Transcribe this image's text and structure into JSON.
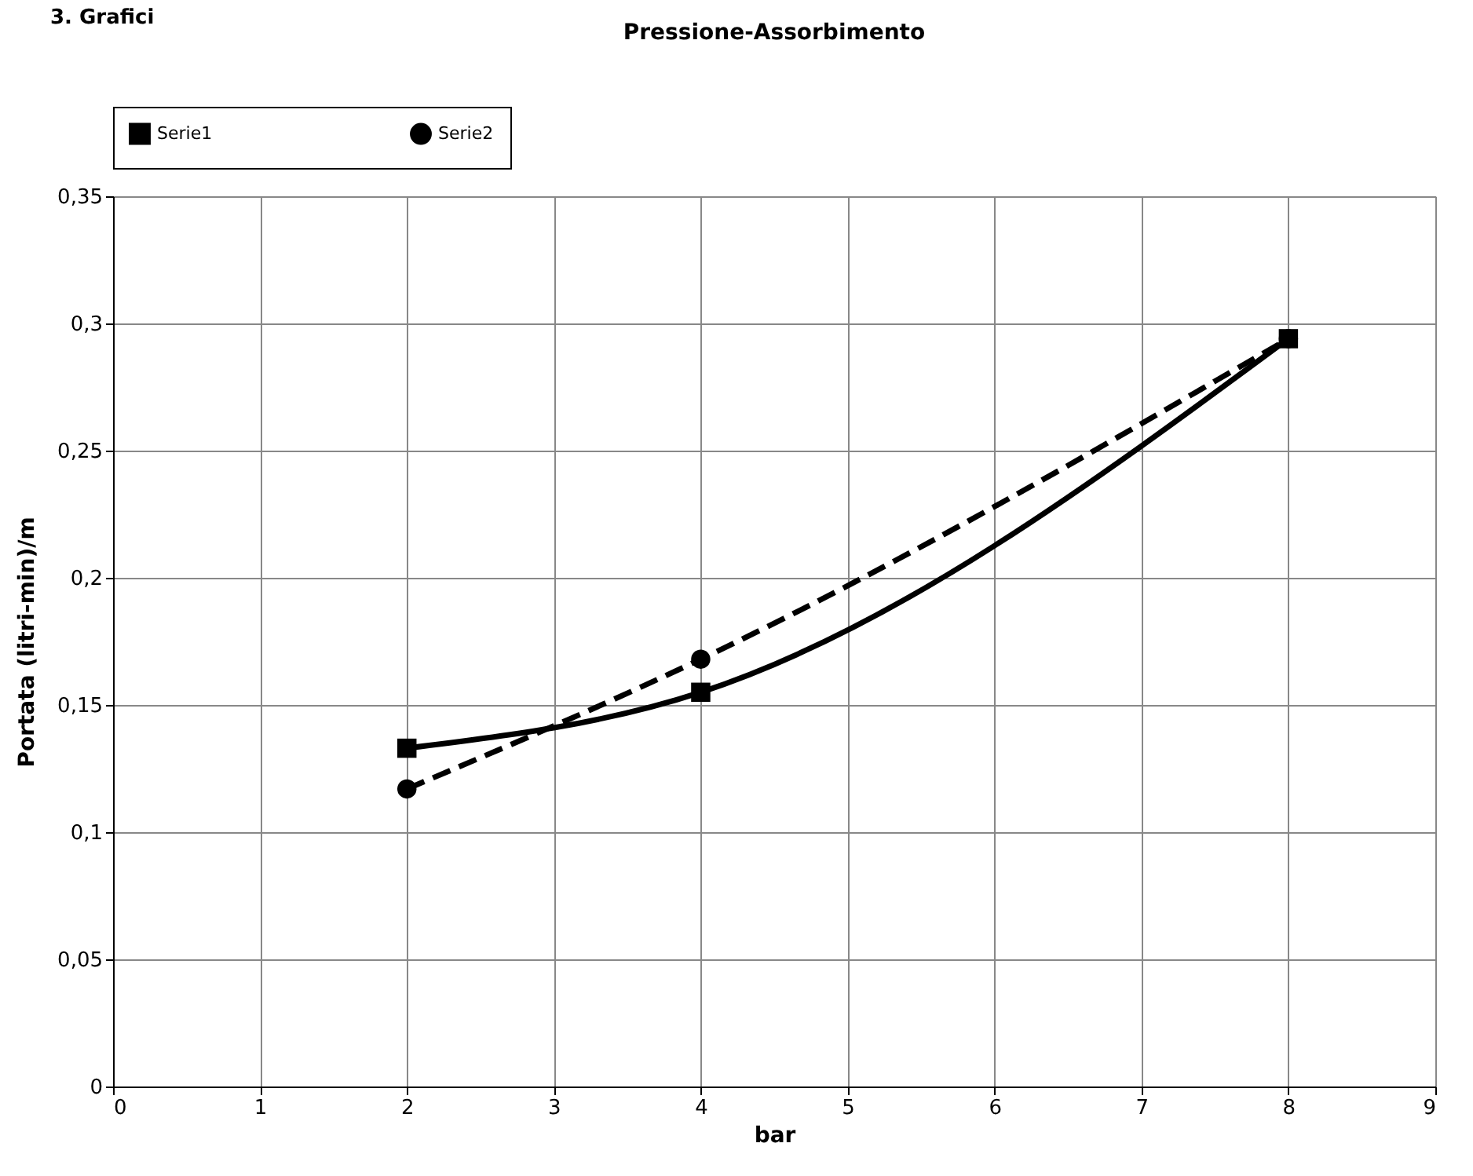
{
  "chart_data": {
    "type": "line",
    "title": "Pressione-Assorbimento",
    "xlabel": "bar",
    "ylabel": "Portata (litri-min)/m",
    "annotations": [
      "3.      Grafici"
    ],
    "series": [
      {
        "name": "Serie1",
        "color": "#000000",
        "x": [
          2,
          4,
          8
        ],
        "values": [
          0.133,
          0.155,
          0.294
        ],
        "marker": "square",
        "line_style": "solid"
      },
      {
        "name": "Serie2",
        "color": "#000000",
        "x": [
          2,
          4,
          8
        ],
        "values": [
          0.117,
          0.168,
          0.294
        ],
        "marker": "circle",
        "line_style": "dashed"
      }
    ],
    "xlim": [
      0,
      9
    ],
    "xticks": [
      0,
      1,
      2,
      3,
      4,
      5,
      6,
      7,
      8,
      9
    ],
    "ylim": [
      0,
      0.35
    ],
    "yticks": [
      0,
      {
        "value": 0.05,
        "label": "0,05"
      },
      {
        "value": 0.1,
        "label": "0,1"
      },
      {
        "value": 0.15,
        "label": "0,15"
      },
      {
        "value": 0.2,
        "label": "0,2"
      },
      {
        "value": 0.25,
        "label": "0,25"
      },
      {
        "value": 0.3,
        "label": "0,3"
      },
      {
        "value": 0.35,
        "label": "0,35"
      }
    ],
    "grid": true,
    "legend": "top"
  }
}
